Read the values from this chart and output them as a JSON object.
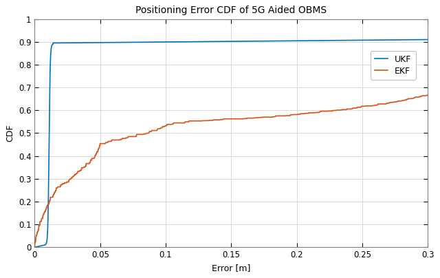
{
  "title": "Positioning Error CDF of 5G Aided OBMS",
  "xlabel": "Error [m]",
  "ylabel": "CDF",
  "xlim": [
    0,
    0.3
  ],
  "ylim": [
    0,
    1
  ],
  "xticks": [
    0,
    0.05,
    0.1,
    0.15,
    0.2,
    0.25,
    0.3
  ],
  "yticks": [
    0,
    0.1,
    0.2,
    0.3,
    0.4,
    0.5,
    0.6,
    0.7,
    0.8,
    0.9,
    1
  ],
  "ukf_color": "#0072BD",
  "ekf_color": "#D95319",
  "background_color": "#FFFFFF",
  "grid_color": "#D3D3D3",
  "legend_labels": [
    "UKF",
    "EKF"
  ],
  "title_fontsize": 10,
  "axis_fontsize": 9,
  "tick_fontsize": 8.5,
  "legend_fontsize": 9,
  "line_width": 1.2
}
